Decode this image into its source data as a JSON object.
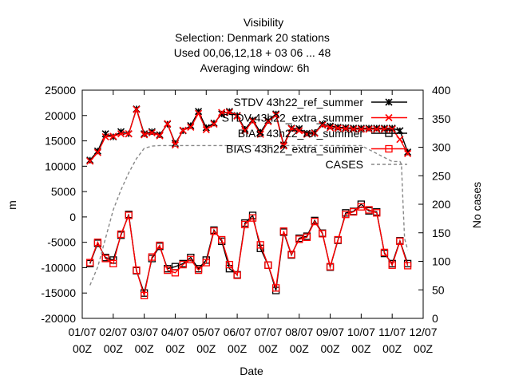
{
  "chart_data": {
    "type": "line",
    "title_lines": [
      "Visibility",
      "Selection: Denmark      20 stations",
      "Used  00,06,12,18  + 03 06 ... 48",
      "Averaging window:  6h"
    ],
    "xlabel": "Date",
    "ylabel": "m",
    "y2label": "No cases",
    "ylim": [
      -20000,
      25000
    ],
    "y2lim": [
      0,
      400
    ],
    "yticks": [
      -20000,
      -15000,
      -10000,
      -5000,
      0,
      5000,
      10000,
      15000,
      20000,
      25000
    ],
    "y2ticks": [
      0,
      50,
      100,
      150,
      200,
      250,
      300,
      350,
      400
    ],
    "xticks": [
      {
        "day": 1,
        "l1": "01/07",
        "l2": "00Z"
      },
      {
        "day": 2,
        "l1": "02/07",
        "l2": "00Z"
      },
      {
        "day": 3,
        "l1": "03/07",
        "l2": "00Z"
      },
      {
        "day": 4,
        "l1": "04/07",
        "l2": "00Z"
      },
      {
        "day": 5,
        "l1": "05/07",
        "l2": "00Z"
      },
      {
        "day": 6,
        "l1": "06/07",
        "l2": "00Z"
      },
      {
        "day": 7,
        "l1": "07/07",
        "l2": "00Z"
      },
      {
        "day": 8,
        "l1": "08/07",
        "l2": "00Z"
      },
      {
        "day": 9,
        "l1": "09/07",
        "l2": "00Z"
      },
      {
        "day": 10,
        "l1": "10/07",
        "l2": "00Z"
      },
      {
        "day": 11,
        "l1": "11/07",
        "l2": "00Z"
      },
      {
        "day": 12,
        "l1": "12/07",
        "l2": "00Z"
      }
    ],
    "legend_position": "top-right",
    "series": [
      {
        "name": "STDV 43h22_ref_summer",
        "color": "#000000",
        "marker": "x-star",
        "axis": "y",
        "x": [
          1.25,
          1.5,
          1.75,
          2.0,
          2.25,
          2.5,
          2.75,
          3.0,
          3.25,
          3.5,
          3.75,
          4.0,
          4.25,
          4.5,
          4.75,
          5.0,
          5.25,
          5.5,
          5.75,
          6.0,
          6.25,
          6.5,
          6.75,
          7.0,
          7.25,
          7.5,
          7.75,
          8.0,
          8.25,
          8.5,
          8.75,
          9.0,
          9.25,
          9.5,
          9.75,
          10.0,
          10.25,
          10.5,
          10.75,
          11.0,
          11.25,
          11.5
        ],
        "values": [
          11200,
          13000,
          16400,
          15800,
          16800,
          16400,
          21300,
          16400,
          16800,
          16200,
          18300,
          14500,
          17000,
          18000,
          20800,
          17600,
          18500,
          20300,
          20800,
          20000,
          17300,
          19100,
          16700,
          19000,
          20300,
          14200,
          17500,
          17400,
          16500,
          16600,
          18300,
          17900,
          17700,
          17600,
          17500,
          17500,
          17500,
          17500,
          17500,
          17500,
          17000,
          12800
        ]
      },
      {
        "name": "STDV 43h22_extra_summer",
        "color": "#ff0000",
        "marker": "x",
        "axis": "y",
        "x": [
          1.25,
          1.5,
          1.75,
          2.0,
          2.25,
          2.5,
          2.75,
          3.0,
          3.25,
          3.5,
          3.75,
          4.0,
          4.25,
          4.5,
          4.75,
          5.0,
          5.25,
          5.5,
          5.75,
          6.0,
          6.25,
          6.5,
          6.75,
          7.0,
          7.25,
          7.5,
          7.75,
          8.0,
          8.25,
          8.5,
          8.75,
          9.0,
          9.25,
          9.5,
          9.75,
          10.0,
          10.25,
          10.5,
          10.75,
          11.0,
          11.25,
          11.5
        ],
        "values": [
          11000,
          12700,
          15800,
          15900,
          16400,
          16400,
          21200,
          16200,
          16600,
          16000,
          18400,
          14200,
          17100,
          17700,
          20400,
          17200,
          18300,
          20600,
          20600,
          19900,
          17000,
          18900,
          16300,
          18800,
          20100,
          14000,
          17400,
          17000,
          16300,
          16500,
          18100,
          17600,
          17500,
          17400,
          17300,
          17300,
          17300,
          17300,
          17300,
          17300,
          15300,
          12500
        ]
      },
      {
        "name": "BIAS 43h22_ref_summer",
        "color": "#000000",
        "marker": "square",
        "axis": "y",
        "x": [
          1.25,
          1.5,
          1.75,
          2.0,
          2.25,
          2.5,
          2.75,
          3.0,
          3.25,
          3.5,
          3.75,
          4.0,
          4.25,
          4.5,
          4.75,
          5.0,
          5.25,
          5.5,
          5.75,
          6.0,
          6.25,
          6.5,
          6.75,
          7.0,
          7.25,
          7.5,
          7.75,
          8.0,
          8.25,
          8.5,
          8.75,
          9.0,
          9.25,
          9.5,
          9.75,
          10.0,
          10.25,
          10.5,
          10.75,
          11.0,
          11.25,
          11.5
        ],
        "values": [
          -9200,
          -5200,
          -8000,
          -8500,
          -3600,
          500,
          -10600,
          -15000,
          -8200,
          -5800,
          -10200,
          -9800,
          -9200,
          -8000,
          -10200,
          -8500,
          -2600,
          -4800,
          -10200,
          -11400,
          -1200,
          300,
          -6200,
          -9500,
          -14500,
          -3000,
          -7500,
          -4200,
          -3800,
          -700,
          -3200,
          -9900,
          -4600,
          800,
          1100,
          2500,
          1200,
          1000,
          -7200,
          -9200,
          -4700,
          -9200
        ]
      },
      {
        "name": "BIAS 43h22_extra_summer",
        "color": "#ff0000",
        "marker": "square",
        "axis": "y",
        "x": [
          1.25,
          1.5,
          1.75,
          2.0,
          2.25,
          2.5,
          2.75,
          3.0,
          3.25,
          3.5,
          3.75,
          4.0,
          4.25,
          4.5,
          4.75,
          5.0,
          5.25,
          5.5,
          5.75,
          6.0,
          6.25,
          6.5,
          6.75,
          7.0,
          7.25,
          7.5,
          7.75,
          8.0,
          8.25,
          8.5,
          8.75,
          9.0,
          9.25,
          9.5,
          9.75,
          10.0,
          10.25,
          10.5,
          10.75,
          11.0,
          11.25,
          11.5
        ],
        "values": [
          -9000,
          -5000,
          -8200,
          -9200,
          -3400,
          300,
          -10500,
          -15500,
          -7900,
          -5600,
          -10500,
          -11000,
          -9400,
          -8400,
          -10500,
          -9000,
          -2800,
          -4500,
          -9400,
          -11500,
          -1500,
          -200,
          -5500,
          -9500,
          -14000,
          -2800,
          -7400,
          -4400,
          -4000,
          -900,
          -3300,
          -9800,
          -4500,
          500,
          1000,
          2000,
          1400,
          800,
          -7000,
          -9500,
          -4800,
          -9600
        ]
      },
      {
        "name": "CASES",
        "color": "#888888",
        "marker": "none",
        "dashed": true,
        "axis": "y2",
        "x": [
          1.25,
          1.5,
          1.75,
          2.0,
          2.25,
          2.5,
          2.75,
          3.0,
          3.25,
          3.5,
          3.75,
          4.0,
          4.25,
          4.5,
          5.0,
          6.0,
          7.0,
          8.0,
          9.0,
          10.0,
          11.0,
          11.25,
          11.3,
          11.35,
          11.4,
          11.5
        ],
        "values": [
          58,
          90,
          140,
          190,
          225,
          255,
          280,
          298,
          302,
          303,
          303,
          303,
          303,
          303,
          303,
          303,
          303,
          303,
          303,
          303,
          275,
          275,
          270,
          200,
          140,
          120
        ]
      }
    ]
  }
}
